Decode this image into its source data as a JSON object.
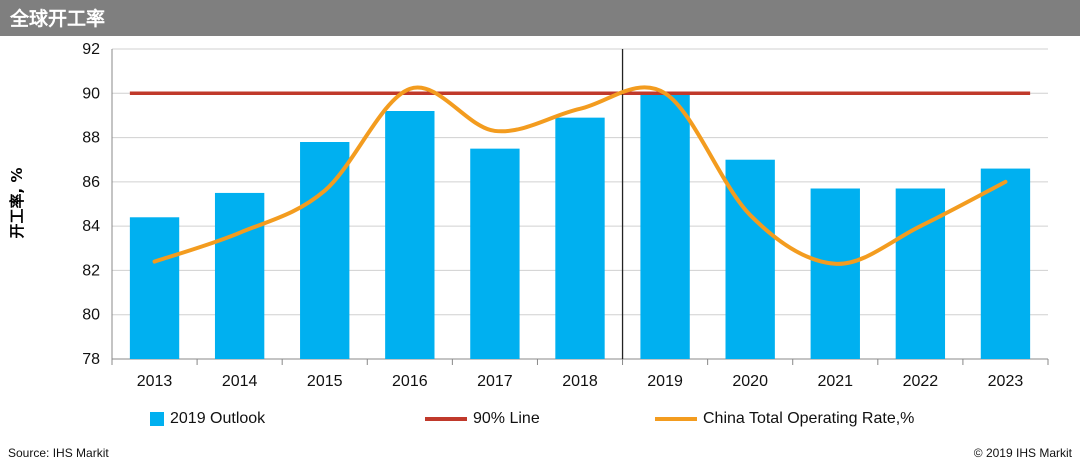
{
  "header": {
    "title": "全球开工率"
  },
  "footer": {
    "source": "Source: IHS Markit",
    "copyright": "© 2019 IHS Markit"
  },
  "colors": {
    "bar": "#00b0f0",
    "line90": "#c0392b",
    "china": "#f39c1f",
    "header_bg": "#7f7f7f"
  },
  "chart_data": {
    "type": "bar",
    "ylabel": "开工率, %",
    "ylim": [
      78,
      92
    ],
    "yticks": [
      78,
      80,
      82,
      84,
      86,
      88,
      90,
      92
    ],
    "categories": [
      "2013",
      "2014",
      "2015",
      "2016",
      "2017",
      "2018",
      "2019",
      "2020",
      "2021",
      "2022",
      "2023"
    ],
    "series": [
      {
        "name": "2019 Outlook",
        "type": "bar",
        "values": [
          84.4,
          85.5,
          87.8,
          89.2,
          87.5,
          88.9,
          90.0,
          87.0,
          85.7,
          85.7,
          86.6
        ]
      },
      {
        "name": "90% Line",
        "type": "line",
        "values": [
          90,
          90,
          90,
          90,
          90,
          90,
          90,
          90,
          90,
          90,
          90
        ]
      },
      {
        "name": "China Total Operating Rate,%",
        "type": "line",
        "smooth": true,
        "values": [
          82.4,
          83.7,
          85.6,
          90.2,
          88.3,
          89.3,
          90.0,
          84.5,
          82.3,
          84.0,
          86.0
        ]
      }
    ],
    "divider_after_category": "2018",
    "legend_position": "bottom"
  }
}
